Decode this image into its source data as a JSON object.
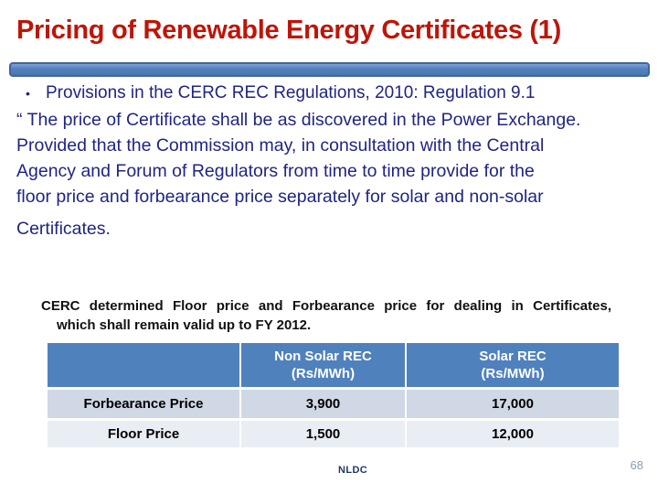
{
  "slide": {
    "title": "Pricing of Renewable Energy Certificates (1)",
    "bullet_glyph": "•",
    "bullet": "Provisions in the CERC REC Regulations, 2010: Regulation 9.1"
  },
  "quote": {
    "lines": [
      "“ The price of Certificate shall be as discovered in the Power Exchange.",
      "Provided that the Commission may, in consultation with the Central",
      "Agency and Forum of Regulators from time to time provide for the",
      "floor price and forbearance price separately for solar and non-solar",
      "Certificates."
    ]
  },
  "note": {
    "line1": "CERC determined Floor price and Forbearance price for dealing in Certificates,",
    "line2": "which shall remain valid up to FY 2012."
  },
  "table": {
    "columns": [
      {
        "label": "",
        "unit": ""
      },
      {
        "label": "Non Solar REC",
        "unit": "(Rs/MWh)"
      },
      {
        "label": "Solar REC",
        "unit": "(Rs/MWh)"
      }
    ],
    "rows": [
      {
        "label": "Forbearance Price",
        "non_solar": "3,900",
        "solar": "17,000"
      },
      {
        "label": "Floor Price",
        "non_solar": "1,500",
        "solar": "12,000"
      }
    ]
  },
  "footer": {
    "org": "NLDC",
    "page_number": "68"
  },
  "colors": {
    "title_red": "#BE1508",
    "body_navy": "#1F2583",
    "divider_bar_fill": "#5181BD",
    "divider_bar_border": "#41659C",
    "table_header_blue": "#4F81BD",
    "table_row_odd": "#D0D7E5",
    "table_row_even": "#E9EDF4",
    "footer_navy": "#203864",
    "page_number_grey": "#8C9BB5"
  }
}
